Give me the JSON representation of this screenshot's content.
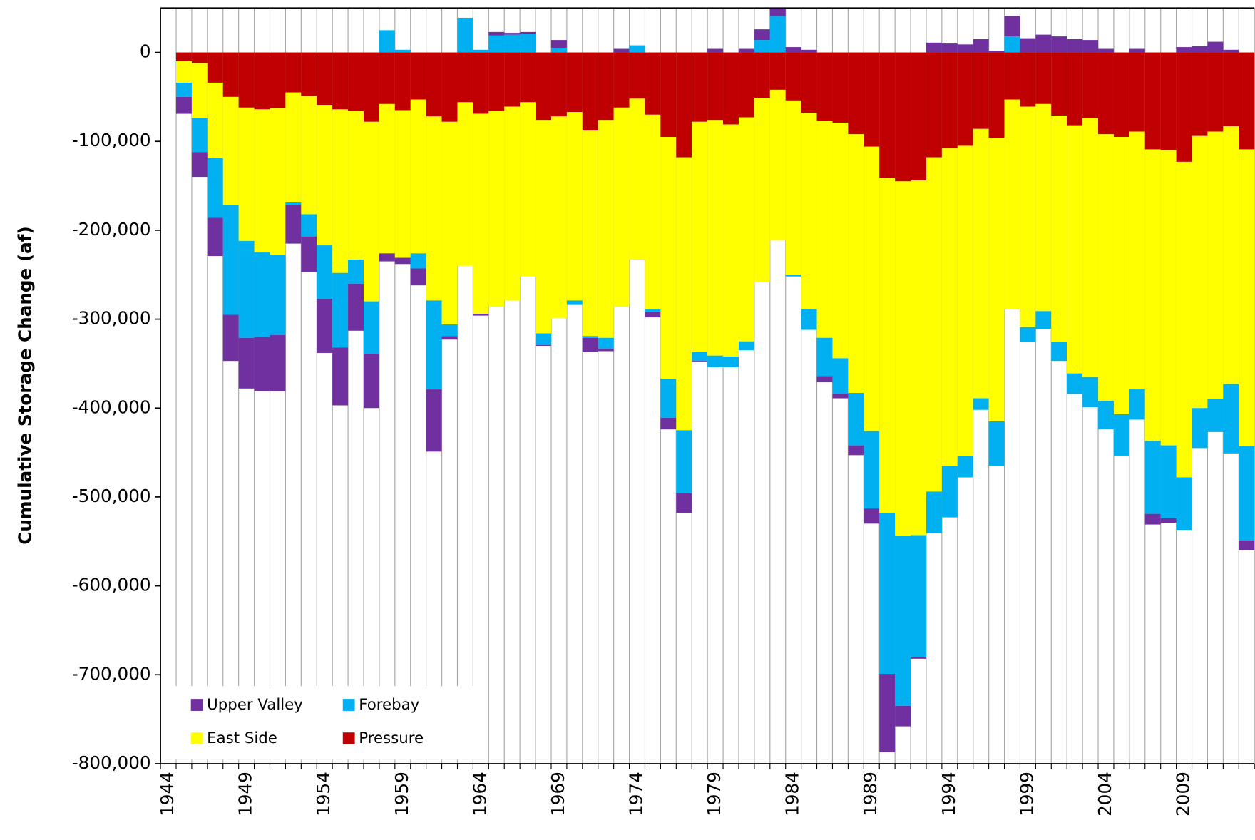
{
  "chart_data": {
    "type": "stacked-bar",
    "y_label": "Cumulative Storage Change (af)",
    "categories": [
      "1944",
      null,
      null,
      null,
      null,
      "1949",
      null,
      null,
      null,
      null,
      "1954",
      null,
      null,
      null,
      null,
      "1959",
      null,
      null,
      null,
      null,
      "1964",
      null,
      null,
      null,
      null,
      "1969",
      null,
      null,
      null,
      null,
      "1974",
      null,
      null,
      null,
      null,
      "1979",
      null,
      null,
      null,
      null,
      "1984",
      null,
      null,
      null,
      null,
      "1989",
      null,
      null,
      null,
      null,
      "1994",
      null,
      null,
      null,
      null,
      "1999",
      null,
      null,
      null,
      null,
      "2004",
      null,
      null,
      null,
      null,
      "2009",
      null,
      null,
      null,
      null
    ],
    "series": [
      {
        "name": "Upper Valley",
        "color": "#7030a0",
        "values": [
          0,
          -19000,
          -28000,
          -43000,
          -52000,
          -57000,
          -61000,
          -63000,
          -43000,
          -40000,
          -61000,
          -65000,
          -53000,
          -61000,
          -9000,
          -7000,
          -19000,
          -70000,
          -4000,
          0,
          -2000,
          4000,
          2000,
          2000,
          -1000,
          9000,
          0,
          -16000,
          -3000,
          4000,
          0,
          -6000,
          -13000,
          -22000,
          -1000,
          4000,
          0,
          4000,
          12000,
          9000,
          6000,
          3000,
          -7000,
          -5000,
          -11000,
          -17000,
          -88000,
          -23000,
          -2000,
          11000,
          10000,
          9000,
          15000,
          2000,
          23000,
          16000,
          20000,
          18000,
          15000,
          14000,
          4000,
          0,
          4000,
          -12000,
          -5000,
          6000,
          7000,
          12000,
          3000,
          -11000
        ]
      },
      {
        "name": "Forebay",
        "color": "#00b0f0",
        "values": [
          0,
          -16000,
          -38000,
          -67000,
          -123000,
          -109000,
          -95000,
          -90000,
          -4000,
          -25000,
          -60000,
          -84000,
          -27000,
          -59000,
          25000,
          3000,
          -17000,
          -100000,
          -13000,
          39000,
          3000,
          19000,
          20000,
          21000,
          -13000,
          5000,
          -5000,
          -2000,
          -12000,
          0,
          8000,
          -3000,
          -44000,
          -71000,
          -10000,
          -13000,
          -12000,
          -10000,
          14000,
          41000,
          -2000,
          -23000,
          -43000,
          -40000,
          -59000,
          -87000,
          -181000,
          -191000,
          -137000,
          -47000,
          -58000,
          -24000,
          -13000,
          -50000,
          18000,
          -17000,
          -20000,
          -21000,
          -23000,
          -34000,
          -32000,
          -47000,
          -34000,
          -82000,
          -82000,
          -59000,
          -45000,
          -37000,
          -78000,
          -106000
        ]
      },
      {
        "name": "East Side",
        "color": "#ffff00",
        "values": [
          0,
          -24000,
          -62000,
          -85000,
          -122000,
          -150000,
          -161000,
          -165000,
          -123000,
          -133000,
          -158000,
          -184000,
          -167000,
          -202000,
          -168000,
          -166000,
          -173000,
          -207000,
          -228000,
          -184000,
          -225000,
          -220000,
          -218000,
          -196000,
          -240000,
          -227000,
          -212000,
          -231000,
          -245000,
          -224000,
          -181000,
          -219000,
          -272000,
          -307000,
          -259000,
          -265000,
          -261000,
          -252000,
          -207000,
          -169000,
          -196000,
          -221000,
          -244000,
          -265000,
          -291000,
          -320000,
          -377000,
          -399000,
          -399000,
          -376000,
          -357000,
          -349000,
          -303000,
          -319000,
          -236000,
          -248000,
          -233000,
          -255000,
          -279000,
          -291000,
          -300000,
          -312000,
          -290000,
          -328000,
          -332000,
          -355000,
          -306000,
          -301000,
          -290000,
          -334000
        ]
      },
      {
        "name": "Pressure",
        "color": "#c00000",
        "values": [
          0,
          -10000,
          -12000,
          -34000,
          -50000,
          -62000,
          -64000,
          -63000,
          -45000,
          -49000,
          -59000,
          -64000,
          -66000,
          -78000,
          -58000,
          -65000,
          -53000,
          -72000,
          -78000,
          -56000,
          -69000,
          -66000,
          -61000,
          -56000,
          -76000,
          -72000,
          -67000,
          -88000,
          -76000,
          -62000,
          -52000,
          -70000,
          -95000,
          -118000,
          -78000,
          -76000,
          -81000,
          -73000,
          -51000,
          -42000,
          -54000,
          -68000,
          -77000,
          -79000,
          -92000,
          -106000,
          -141000,
          -145000,
          -144000,
          -118000,
          -108000,
          -105000,
          -86000,
          -96000,
          -53000,
          -61000,
          -58000,
          -71000,
          -82000,
          -74000,
          -92000,
          -95000,
          -89000,
          -109000,
          -110000,
          -123000,
          -94000,
          -89000,
          -83000,
          -109000
        ]
      }
    ],
    "ylim": [
      -800000,
      50000
    ],
    "yticks": [
      {
        "value": -800000,
        "label": "-800,000"
      },
      {
        "value": -700000,
        "label": "-700,000"
      },
      {
        "value": -600000,
        "label": "-600,000"
      },
      {
        "value": -500000,
        "label": "-500,000"
      },
      {
        "value": -400000,
        "label": "-400,000"
      },
      {
        "value": -300000,
        "label": "-300,000"
      },
      {
        "value": -200000,
        "label": "-200,000"
      },
      {
        "value": -100000,
        "label": "-100,000"
      },
      0
    ],
    "grid": true,
    "legend": "bottom-left"
  }
}
